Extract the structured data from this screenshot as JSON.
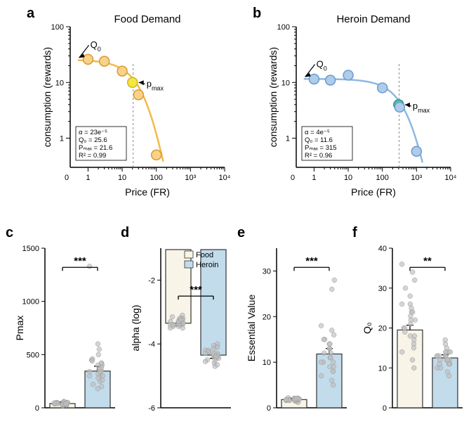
{
  "panels": {
    "a": {
      "label": "a",
      "title": "Food Demand",
      "type": "scatter-line-loglog",
      "xlabel": "Price (FR)",
      "ylabel": "consumption (rewards)",
      "xlim": [
        0.3,
        10000
      ],
      "ylim": [
        0.3,
        100
      ],
      "xticks": [
        1,
        10,
        100,
        1000,
        10000
      ],
      "xtick_labels": [
        "1",
        "10",
        "100",
        "10³",
        "10⁴"
      ],
      "yticks": [
        1,
        10,
        100
      ],
      "ytick_labels": [
        "1",
        "10",
        "100"
      ],
      "line_color": "#f5b947",
      "point_fill": "#f9d28a",
      "point_stroke": "#d89a33",
      "highlight_fill": "#f5e642",
      "highlight_stroke": "#c9b820",
      "points": [
        {
          "x": 1,
          "y": 26
        },
        {
          "x": 3,
          "y": 24
        },
        {
          "x": 10,
          "y": 16
        },
        {
          "x": 20,
          "y": 10,
          "highlight": true
        },
        {
          "x": 30,
          "y": 6
        },
        {
          "x": 100,
          "y": 0.5
        }
      ],
      "pmax_x": 21,
      "q0_annotation": "Q",
      "q0_sub": "0",
      "pmax_annotation": "p",
      "pmax_sub": "max",
      "stats": {
        "alpha": "α  = 23e⁻⁵",
        "q0": "Q₀ = 25.6",
        "pmax": "Pₘₐₓ = 21.6",
        "r2": "R² = 0.99"
      }
    },
    "b": {
      "label": "b",
      "title": "Heroin Demand",
      "type": "scatter-line-loglog",
      "xlabel": "Price (FR)",
      "ylabel": "consumption (rewards)",
      "xlim": [
        0.3,
        10000
      ],
      "ylim": [
        0.3,
        100
      ],
      "xticks": [
        1,
        10,
        100,
        1000,
        10000
      ],
      "xtick_labels": [
        "1",
        "10",
        "100",
        "10³",
        "10⁴"
      ],
      "yticks": [
        1,
        10,
        100
      ],
      "ytick_labels": [
        "1",
        "10",
        "100"
      ],
      "line_color": "#8fb8e0",
      "point_fill": "#afcce8",
      "point_stroke": "#6a9cd0",
      "highlight_fill": "#4ec9b0",
      "highlight_stroke": "#2a9080",
      "points": [
        {
          "x": 1,
          "y": 11.5
        },
        {
          "x": 3,
          "y": 11
        },
        {
          "x": 10,
          "y": 13.5
        },
        {
          "x": 100,
          "y": 8
        },
        {
          "x": 300,
          "y": 4,
          "highlight": true
        },
        {
          "x": 320,
          "y": 3.6
        },
        {
          "x": 1000,
          "y": 0.58
        }
      ],
      "pmax_x": 310,
      "q0_annotation": "Q",
      "q0_sub": "0",
      "pmax_annotation": "p",
      "pmax_sub": "max",
      "stats": {
        "alpha": "α  = 4e⁻⁵",
        "q0": "Q₀ = 11.6",
        "pmax": "Pₘₐₓ = 315",
        "r2": "R² = 0.96"
      }
    },
    "c": {
      "label": "c",
      "type": "bar",
      "ylabel": "Pmax",
      "ylim": [
        0,
        1500
      ],
      "yticks": [
        0,
        500,
        1000,
        1500
      ],
      "bars": [
        {
          "name": "Food",
          "mean": 40,
          "sem": 15,
          "fill": "#f8f4e8",
          "stroke": "#333"
        },
        {
          "name": "Heroin",
          "mean": 345,
          "sem": 45,
          "fill": "#c2dcec",
          "stroke": "#333"
        }
      ],
      "scatter_color": "#bfbfbf",
      "food_points": [
        25,
        30,
        35,
        40,
        45,
        50,
        55,
        60,
        20,
        30,
        40,
        50,
        35,
        45,
        28,
        38,
        48,
        32,
        42,
        52,
        30,
        40,
        50,
        35,
        45,
        38
      ],
      "heroin_points": [
        200,
        250,
        300,
        350,
        400,
        450,
        500,
        550,
        600,
        180,
        220,
        260,
        300,
        340,
        380,
        420,
        460,
        280,
        320,
        360,
        400,
        440,
        300,
        340,
        1330,
        420
      ],
      "sig": "***"
    },
    "d": {
      "label": "d",
      "type": "bar",
      "ylabel": "alpha (log)",
      "ylim": [
        -6,
        -1
      ],
      "yticks": [
        -6,
        -4,
        -2
      ],
      "legend": [
        {
          "label": "Food",
          "fill": "#f8f4e8"
        },
        {
          "label": "Heroin",
          "fill": "#c2dcec"
        }
      ],
      "bars": [
        {
          "name": "Food",
          "mean": -3.35,
          "sem": 0.08,
          "fill": "#f8f4e8",
          "stroke": "#333"
        },
        {
          "name": "Heroin",
          "mean": -4.35,
          "sem": 0.1,
          "fill": "#c2dcec",
          "stroke": "#333"
        }
      ],
      "scatter_color": "#bfbfbf",
      "food_points": [
        -3.1,
        -3.2,
        -3.3,
        -3.4,
        -3.5,
        -3.15,
        -3.25,
        -3.35,
        -3.45,
        -3.3,
        -3.4,
        -3.2,
        -3.3,
        -3.4,
        -3.35,
        -3.25,
        -3.45,
        -3.3,
        -3.4,
        -3.2,
        -3.3,
        -3.4,
        -3.35,
        -3.25,
        -3.5
      ],
      "heroin_points": [
        -4.0,
        -4.1,
        -4.2,
        -4.3,
        -4.4,
        -4.5,
        -4.6,
        -4.7,
        -4.05,
        -4.15,
        -4.25,
        -4.35,
        -4.45,
        -4.55,
        -4.65,
        -4.1,
        -4.2,
        -4.3,
        -4.4,
        -4.5,
        -4.35,
        -4.25,
        -4.45,
        -4.4,
        -4.3
      ],
      "sig": "***"
    },
    "e": {
      "label": "e",
      "type": "bar",
      "ylabel": "Essential Value",
      "ylim": [
        0,
        35
      ],
      "yticks": [
        0,
        10,
        20,
        30
      ],
      "bars": [
        {
          "name": "Food",
          "mean": 1.8,
          "sem": 0.3,
          "fill": "#f8f4e8",
          "stroke": "#333"
        },
        {
          "name": "Heroin",
          "mean": 11.8,
          "sem": 1.2,
          "fill": "#c2dcec",
          "stroke": "#333"
        }
      ],
      "scatter_color": "#bfbfbf",
      "food_points": [
        1.2,
        1.4,
        1.6,
        1.8,
        2.0,
        2.2,
        1.5,
        1.7,
        1.9,
        2.1,
        1.6,
        1.8,
        2.0,
        1.7,
        1.9,
        2.1,
        1.8,
        2.0,
        1.6,
        1.8,
        2.0,
        1.7,
        1.9,
        2.1,
        1.8
      ],
      "heroin_points": [
        5,
        6,
        7,
        8,
        9,
        10,
        11,
        12,
        13,
        14,
        15,
        16,
        17,
        18,
        8,
        10,
        12,
        14,
        9,
        11,
        13,
        15,
        28,
        26,
        10
      ],
      "sig": "***"
    },
    "f": {
      "label": "f",
      "type": "bar",
      "ylabel": "Q₀",
      "ylim": [
        0,
        40
      ],
      "yticks": [
        0,
        10,
        20,
        30,
        40
      ],
      "bars": [
        {
          "name": "Food",
          "mean": 19.5,
          "sem": 1.2,
          "fill": "#f8f4e8",
          "stroke": "#333"
        },
        {
          "name": "Heroin",
          "mean": 12.5,
          "sem": 0.8,
          "fill": "#c2dcec",
          "stroke": "#333"
        }
      ],
      "scatter_color": "#bfbfbf",
      "food_points": [
        10,
        12,
        14,
        16,
        18,
        20,
        22,
        24,
        26,
        28,
        30,
        32,
        34,
        36,
        15,
        17,
        19,
        21,
        23,
        25,
        18,
        20,
        22,
        24,
        26
      ],
      "heroin_points": [
        8,
        9,
        10,
        11,
        12,
        13,
        14,
        15,
        16,
        17,
        10,
        11,
        12,
        13,
        14,
        11,
        12,
        13,
        14,
        12,
        13,
        11,
        14,
        12,
        13
      ],
      "sig": "**"
    }
  },
  "colors": {
    "background": "#ffffff",
    "axis": "#000000",
    "scatter_jitter": "#bfbfbf"
  }
}
